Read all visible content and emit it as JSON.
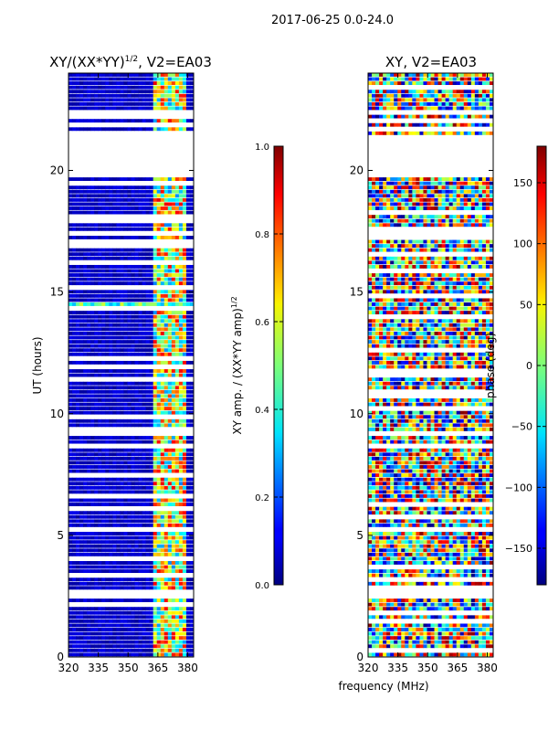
{
  "suptitle": "2017-06-25 0.0-24.0",
  "xlabel_shared": "frequency (MHz)",
  "colors": {
    "missing_row": "#ffffff",
    "frame": "#000000"
  },
  "chart_data": [
    {
      "type": "heatmap",
      "title": "XY/(XX*YY)¹ᐟ², V2=EA03",
      "title_main": "XY/(XX*YY)",
      "title_sup": "1/2",
      "title_tail": ", V2=EA03",
      "ylabel": "UT (hours)",
      "xlim": [
        320,
        383
      ],
      "ylim": [
        0,
        24
      ],
      "xticks": [
        320,
        335,
        350,
        365,
        380
      ],
      "yticks": [
        0,
        5,
        10,
        15,
        20
      ],
      "colorbar": {
        "label_main": "XY amp. / (XX*YY amp)",
        "label_sup": "1/2",
        "range": [
          0.0,
          1.0
        ],
        "ticks": [
          "0.0",
          "0.2",
          "0.4",
          "0.6",
          "0.8",
          "1.0"
        ],
        "colormap": "jet"
      },
      "missing_hours": [
        [
          19.7,
          21.4
        ],
        [
          2.35,
          2.7
        ]
      ],
      "bright_band_mhz": [
        363,
        379
      ],
      "features": "low amplitude (~0.05) below 363 MHz, high amplitude 0.4-0.9 between 363-379 MHz, a bright row near 14.4 h"
    },
    {
      "type": "heatmap",
      "title": "XY, V2=EA03",
      "ylabel": "",
      "xlim": [
        320,
        383
      ],
      "ylim": [
        0,
        24
      ],
      "xticks": [
        320,
        335,
        350,
        365,
        380
      ],
      "yticks": [
        0,
        5,
        10,
        15,
        20
      ],
      "colorbar": {
        "label": "phase (deg)",
        "range": [
          -180,
          180
        ],
        "ticks": [
          "150",
          "100",
          "50",
          "0",
          "−50",
          "−100",
          "−150"
        ],
        "tick_values": [
          150,
          100,
          50,
          0,
          -50,
          -100,
          -150
        ],
        "colormap": "jet"
      },
      "missing_hours": [
        [
          19.8,
          21.5
        ],
        [
          2.45,
          2.65
        ]
      ],
      "features": "noisy phase values spanning -180 to 180 deg across all frequencies"
    }
  ]
}
